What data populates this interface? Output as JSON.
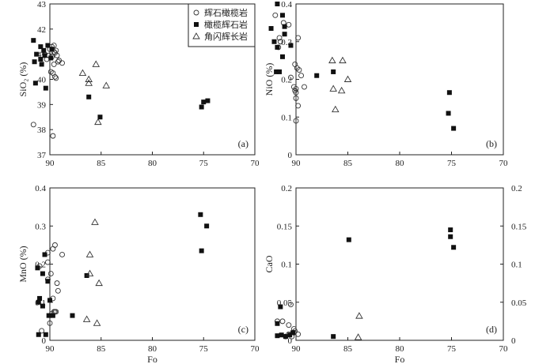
{
  "legend": [
    {
      "marker": "circle",
      "label": "辉石橄榄岩"
    },
    {
      "marker": "square",
      "label": "橄榄辉石岩"
    },
    {
      "marker": "triangle",
      "label": "角闪辉长岩"
    }
  ],
  "chart_data": [
    {
      "type": "scatter",
      "panel": "(a)",
      "xlabel": "",
      "ylabel": "SiO₂ (%)",
      "xlim": [
        90,
        70
      ],
      "ylim": [
        37,
        43
      ],
      "xticks": [
        90,
        85,
        80,
        75,
        70
      ],
      "yticks": [
        37,
        38,
        39,
        40,
        41,
        42,
        43
      ],
      "series": [
        {
          "marker": "circle",
          "points": [
            [
              91.6,
              38.2
            ],
            [
              89.7,
              37.75
            ],
            [
              90.0,
              41.2
            ],
            [
              89.4,
              41.15
            ],
            [
              89.6,
              41.1
            ],
            [
              90.5,
              41.0
            ],
            [
              90.1,
              40.95
            ],
            [
              89.8,
              40.9
            ],
            [
              90.3,
              40.8
            ],
            [
              89.2,
              40.7
            ],
            [
              88.8,
              40.65
            ],
            [
              89.6,
              40.6
            ],
            [
              89.9,
              40.3
            ],
            [
              89.7,
              40.25
            ],
            [
              89.5,
              40.1
            ],
            [
              89.4,
              40.05
            ],
            [
              89.8,
              41.3
            ],
            [
              89.6,
              41.35
            ],
            [
              89.5,
              41.05
            ],
            [
              89.3,
              40.95
            ],
            [
              89.1,
              40.75
            ]
          ]
        },
        {
          "marker": "square",
          "points": [
            [
              91.6,
              41.55
            ],
            [
              91.3,
              41.0
            ],
            [
              90.9,
              41.3
            ],
            [
              90.5,
              40.95
            ],
            [
              90.9,
              40.8
            ],
            [
              91.5,
              40.7
            ],
            [
              90.8,
              40.6
            ],
            [
              91.4,
              39.85
            ],
            [
              90.4,
              39.65
            ],
            [
              90.2,
              41.35
            ],
            [
              89.8,
              41.2
            ],
            [
              89.9,
              40.85
            ],
            [
              90.6,
              41.15
            ],
            [
              86.2,
              39.3
            ],
            [
              85.1,
              38.5
            ],
            [
              75.2,
              38.9
            ],
            [
              75.0,
              39.1
            ],
            [
              74.6,
              39.15
            ]
          ]
        },
        {
          "marker": "triangle",
          "points": [
            [
              86.8,
              40.25
            ],
            [
              86.2,
              40.0
            ],
            [
              86.2,
              39.85
            ],
            [
              85.5,
              40.6
            ],
            [
              84.5,
              39.75
            ],
            [
              85.3,
              38.3
            ]
          ]
        }
      ]
    },
    {
      "type": "scatter",
      "panel": "(b)",
      "xlabel": "",
      "ylabel": "NiO (%)",
      "xlim": [
        90,
        70
      ],
      "ylim": [
        0,
        0.4
      ],
      "xticks": [
        90,
        85,
        80,
        75,
        70
      ],
      "yticks": [
        0,
        0.1,
        0.2,
        0.3,
        0.4
      ],
      "series": [
        {
          "marker": "circle",
          "points": [
            [
              92.0,
              0.37
            ],
            [
              91.6,
              0.31
            ],
            [
              91.5,
              0.3
            ],
            [
              91.7,
              0.285
            ],
            [
              91.2,
              0.35
            ],
            [
              90.7,
              0.345
            ],
            [
              89.8,
              0.31
            ],
            [
              90.1,
              0.24
            ],
            [
              90.2,
              0.18
            ],
            [
              90.5,
              0.205
            ],
            [
              90.0,
              0.175
            ],
            [
              90.1,
              0.17
            ],
            [
              90.0,
              0.165
            ],
            [
              90.0,
              0.15
            ],
            [
              89.8,
              0.13
            ],
            [
              90.0,
              0.09
            ],
            [
              89.2,
              0.18
            ],
            [
              89.5,
              0.21
            ],
            [
              89.9,
              0.23
            ],
            [
              89.7,
              0.225
            ]
          ]
        },
        {
          "marker": "square",
          "points": [
            [
              91.8,
              0.4
            ],
            [
              91.3,
              0.37
            ],
            [
              91.1,
              0.34
            ],
            [
              91.1,
              0.32
            ],
            [
              92.4,
              0.335
            ],
            [
              92.1,
              0.3
            ],
            [
              91.8,
              0.285
            ],
            [
              91.9,
              0.22
            ],
            [
              91.6,
              0.22
            ],
            [
              91.3,
              0.26
            ],
            [
              90.5,
              0.29
            ],
            [
              88.0,
              0.21
            ],
            [
              86.4,
              0.22
            ],
            [
              75.2,
              0.165
            ],
            [
              75.3,
              0.11
            ],
            [
              74.8,
              0.07
            ]
          ]
        },
        {
          "marker": "triangle",
          "points": [
            [
              86.5,
              0.25
            ],
            [
              85.5,
              0.25
            ],
            [
              86.4,
              0.175
            ],
            [
              85.6,
              0.17
            ],
            [
              85.0,
              0.2
            ],
            [
              86.2,
              0.12
            ]
          ]
        }
      ]
    },
    {
      "type": "scatter",
      "panel": "(c)",
      "xlabel": "Fo",
      "ylabel": "MnO (%)",
      "xlim": [
        90,
        70
      ],
      "ylim": [
        0,
        0.4
      ],
      "xticks": [
        90,
        85,
        80,
        75,
        70
      ],
      "yticks": [
        0,
        0.1,
        0.2,
        0.3,
        0.4
      ],
      "series": [
        {
          "marker": "circle",
          "points": [
            [
              91.0,
              0.195
            ],
            [
              90.2,
              0.23
            ],
            [
              89.7,
              0.24
            ],
            [
              89.5,
              0.25
            ],
            [
              90.2,
              0.205
            ],
            [
              90.2,
              0.16
            ],
            [
              89.9,
              0.175
            ],
            [
              89.3,
              0.15
            ],
            [
              89.2,
              0.13
            ],
            [
              89.7,
              0.11
            ],
            [
              89.6,
              0.075
            ],
            [
              89.4,
              0.075
            ],
            [
              89.8,
              0.07
            ],
            [
              90.0,
              0.045
            ],
            [
              90.8,
              0.025
            ],
            [
              88.8,
              0.225
            ],
            [
              89.5,
              0.075
            ]
          ]
        },
        {
          "marker": "square",
          "points": [
            [
              91.2,
              0.19
            ],
            [
              90.5,
              0.225
            ],
            [
              91.0,
              0.11
            ],
            [
              90.7,
              0.175
            ],
            [
              90.2,
              0.155
            ],
            [
              90.0,
              0.105
            ],
            [
              91.1,
              0.1
            ],
            [
              90.7,
              0.09
            ],
            [
              90.1,
              0.065
            ],
            [
              89.7,
              0.065
            ],
            [
              91.1,
              0.015
            ],
            [
              90.4,
              0.015
            ],
            [
              87.8,
              0.065
            ],
            [
              86.4,
              0.17
            ],
            [
              75.3,
              0.33
            ],
            [
              75.2,
              0.235
            ],
            [
              74.7,
              0.3
            ]
          ]
        },
        {
          "marker": "triangle",
          "points": [
            [
              85.6,
              0.31
            ],
            [
              86.1,
              0.225
            ],
            [
              86.1,
              0.175
            ],
            [
              85.2,
              0.15
            ],
            [
              86.4,
              0.055
            ],
            [
              85.4,
              0.045
            ]
          ]
        }
      ]
    },
    {
      "type": "scatter",
      "panel": "(d)",
      "xlabel": "Fo",
      "ylabel": "CaO",
      "xlim": [
        90,
        70
      ],
      "ylim": [
        0,
        0.2
      ],
      "xticks": [
        90,
        85,
        80,
        75,
        70
      ],
      "yticks": [
        0,
        0.05,
        0.1,
        0.15,
        0.2
      ],
      "right_yticks": [
        0,
        0.05,
        0.1,
        0.15,
        0.2
      ],
      "series": [
        {
          "marker": "circle",
          "points": [
            [
              91.8,
              0.025
            ],
            [
              91.3,
              0.025
            ],
            [
              90.7,
              0.02
            ],
            [
              90.5,
              0.047
            ],
            [
              90.2,
              0.015
            ],
            [
              90.2,
              0.01
            ],
            [
              90.1,
              0.012
            ],
            [
              89.8,
              0.008
            ],
            [
              90.4,
              0.005
            ],
            [
              90.7,
              0.008
            ],
            [
              91.0,
              0.005
            ]
          ]
        },
        {
          "marker": "square",
          "points": [
            [
              91.8,
              0.022
            ],
            [
              91.5,
              0.044
            ],
            [
              91.4,
              0.007
            ],
            [
              91.0,
              0.005
            ],
            [
              90.6,
              0.007
            ],
            [
              90.3,
              0.01
            ],
            [
              91.8,
              0.006
            ],
            [
              86.4,
              0.005
            ],
            [
              84.9,
              0.132
            ],
            [
              75.1,
              0.145
            ],
            [
              75.1,
              0.136
            ],
            [
              74.8,
              0.122
            ]
          ]
        },
        {
          "marker": "triangle",
          "points": [
            [
              83.9,
              0.032
            ],
            [
              84.0,
              0.004
            ]
          ]
        }
      ]
    }
  ]
}
